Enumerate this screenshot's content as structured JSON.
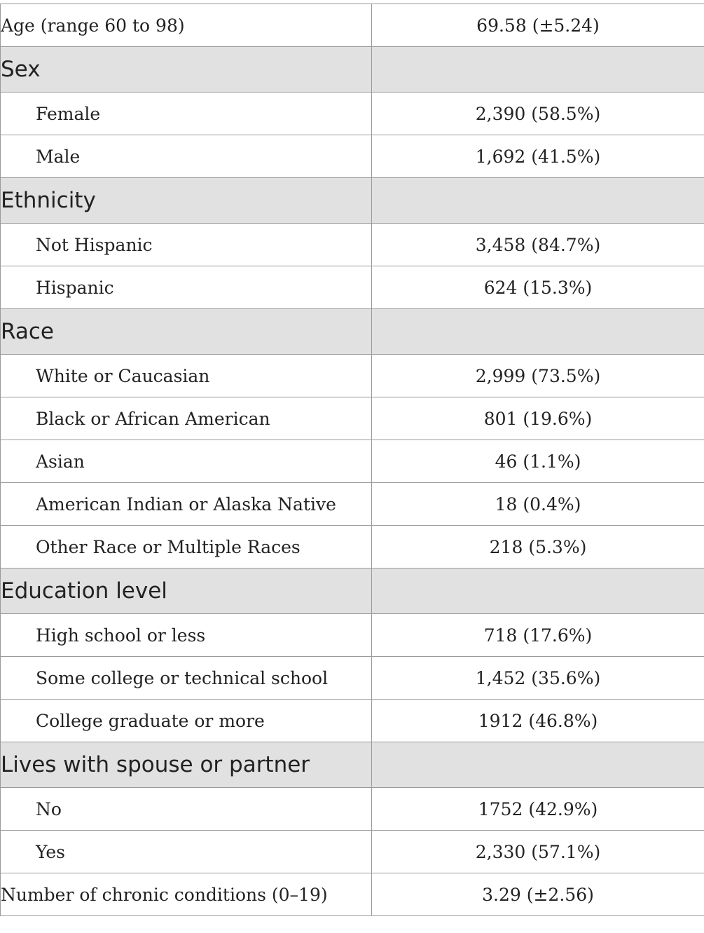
{
  "rows": [
    {
      "kind": "data",
      "label": "Age (range 60 to 98)",
      "value": "69.58 (±5.24)"
    },
    {
      "kind": "header",
      "label": "Sex",
      "value": ""
    },
    {
      "kind": "sub",
      "label": "Female",
      "value": "2,390 (58.5%)"
    },
    {
      "kind": "sub",
      "label": "Male",
      "value": "1,692 (41.5%)"
    },
    {
      "kind": "header",
      "label": "Ethnicity",
      "value": ""
    },
    {
      "kind": "sub",
      "label": "Not Hispanic",
      "value": "3,458 (84.7%)"
    },
    {
      "kind": "sub",
      "label": "Hispanic",
      "value": "624 (15.3%)"
    },
    {
      "kind": "header",
      "label": "Race",
      "value": ""
    },
    {
      "kind": "sub",
      "label": "White or Caucasian",
      "value": "2,999 (73.5%)"
    },
    {
      "kind": "sub",
      "label": "Black or African American",
      "value": "801 (19.6%)"
    },
    {
      "kind": "sub",
      "label": "Asian",
      "value": "46 (1.1%)"
    },
    {
      "kind": "sub",
      "label": "American Indian or Alaska Native",
      "value": "18 (0.4%)"
    },
    {
      "kind": "sub",
      "label": "Other Race or Multiple Races",
      "value": "218 (5.3%)"
    },
    {
      "kind": "header",
      "label": "Education level",
      "value": ""
    },
    {
      "kind": "sub",
      "label": "High school or less",
      "value": "718 (17.6%)"
    },
    {
      "kind": "sub",
      "label": "Some college or technical school",
      "value": "1,452 (35.6%)"
    },
    {
      "kind": "sub",
      "label": "College graduate or more",
      "value": "1912 (46.8%)"
    },
    {
      "kind": "header",
      "label": "Lives with spouse or partner",
      "value": ""
    },
    {
      "kind": "sub",
      "label": "No",
      "value": "1752 (42.9%)"
    },
    {
      "kind": "sub",
      "label": "Yes",
      "value": "2,330 (57.1%)"
    },
    {
      "kind": "data",
      "label": "Number of chronic conditions (0–19)",
      "value": "3.29 (±2.56)"
    }
  ]
}
